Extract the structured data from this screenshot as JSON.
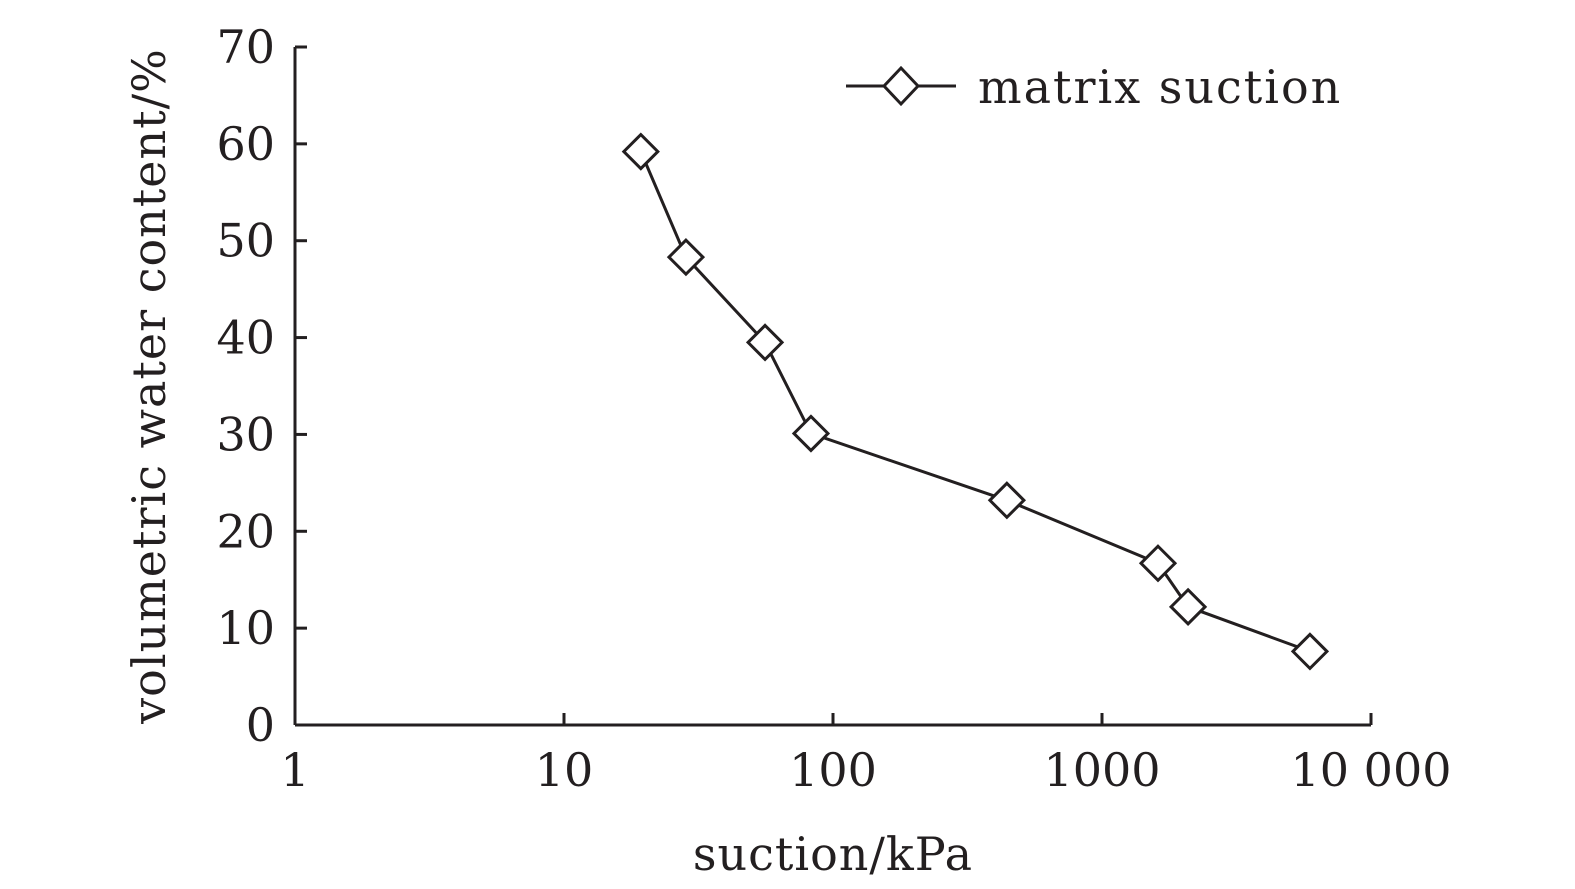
{
  "chart_data": {
    "type": "line",
    "title": "",
    "xlabel": "suction/kPa",
    "ylabel": "volumetric water content/%",
    "xscale": "log",
    "xlim": [
      1,
      10000
    ],
    "ylim": [
      0,
      70
    ],
    "x_ticks": [
      1,
      10,
      100,
      1000,
      10000
    ],
    "x_tick_labels": [
      "1",
      "10",
      "100",
      "1000",
      "10 000"
    ],
    "y_ticks": [
      0,
      10,
      20,
      30,
      40,
      50,
      60,
      70
    ],
    "y_tick_labels": [
      "0",
      "10",
      "20",
      "30",
      "40",
      "50",
      "60",
      "70"
    ],
    "grid": false,
    "legend_position": "top-right",
    "series": [
      {
        "name": "matrix suction",
        "marker": "diamond",
        "color": "#231f20",
        "x": [
          19.3,
          28.4,
          55.9,
          82.8,
          443,
          1615,
          2089,
          5930
        ],
        "y": [
          59.2,
          48.3,
          39.5,
          30.1,
          23.2,
          16.7,
          12.2,
          7.6
        ]
      }
    ]
  }
}
